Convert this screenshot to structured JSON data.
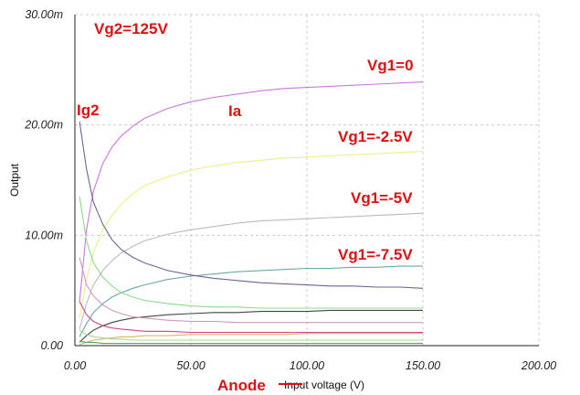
{
  "chart_data": {
    "type": "line",
    "title": "",
    "xlabel": "Input voltage (V)",
    "xlabel_strike": "Input",
    "xlabel_rest": " voltage (V)",
    "xlabel_overwrite": "Anode",
    "ylabel": "Output",
    "xlim": [
      0,
      200
    ],
    "ylim": [
      0,
      0.03
    ],
    "grid": true,
    "x_ticks": [
      "0.00",
      "50.00",
      "100.00",
      "150.00",
      "200.00"
    ],
    "x_tick_values": [
      0,
      50,
      100,
      150,
      200
    ],
    "y_ticks": [
      "0.00",
      "10.00m",
      "20.00m",
      "30.00m"
    ],
    "y_tick_values": [
      0,
      0.01,
      0.02,
      0.03
    ],
    "annotations": {
      "vg2": "Vg2=125V",
      "ig2": "Ig2",
      "ia": "Ia",
      "vg1_0": "Vg1=0",
      "vg1_m2_5": "Vg1=-2.5V",
      "vg1_m5": "Vg1=-5V",
      "vg1_m7_5": "Vg1=-7.5V"
    },
    "series": [
      {
        "group": "Ia",
        "color": "#cc77dd",
        "x": [
          2,
          5,
          8,
          12,
          16,
          20,
          25,
          30,
          40,
          50,
          60,
          70,
          80,
          90,
          100,
          110,
          120,
          130,
          140,
          150
        ],
        "y": [
          0.004,
          0.0105,
          0.014,
          0.0165,
          0.018,
          0.019,
          0.0199,
          0.0206,
          0.0215,
          0.0221,
          0.0225,
          0.0228,
          0.0231,
          0.0233,
          0.0234,
          0.0235,
          0.0236,
          0.0237,
          0.0238,
          0.0239
        ]
      },
      {
        "group": "Ia",
        "color": "#eeee88",
        "x": [
          2,
          5,
          8,
          12,
          16,
          20,
          25,
          30,
          40,
          50,
          60,
          70,
          80,
          90,
          100,
          110,
          120,
          130,
          140,
          150
        ],
        "y": [
          0.0025,
          0.006,
          0.0085,
          0.0105,
          0.0118,
          0.0128,
          0.0138,
          0.0145,
          0.0153,
          0.0159,
          0.0163,
          0.0166,
          0.0168,
          0.017,
          0.0171,
          0.0172,
          0.0173,
          0.0174,
          0.0175,
          0.0176
        ]
      },
      {
        "group": "Ia",
        "color": "#bbbbbb",
        "x": [
          2,
          5,
          8,
          12,
          16,
          20,
          25,
          30,
          40,
          50,
          60,
          70,
          80,
          90,
          100,
          110,
          120,
          130,
          140,
          150
        ],
        "y": [
          0.0015,
          0.0038,
          0.0055,
          0.0068,
          0.0077,
          0.0084,
          0.009,
          0.0095,
          0.0101,
          0.0105,
          0.0108,
          0.0111,
          0.0113,
          0.0114,
          0.0115,
          0.0116,
          0.0117,
          0.0118,
          0.0119,
          0.012
        ]
      },
      {
        "group": "Ia",
        "color": "#6aa8a8",
        "x": [
          2,
          5,
          8,
          12,
          16,
          20,
          25,
          30,
          40,
          50,
          60,
          70,
          80,
          90,
          100,
          110,
          120,
          130,
          140,
          150
        ],
        "y": [
          0.0008,
          0.002,
          0.003,
          0.0038,
          0.0044,
          0.0048,
          0.0052,
          0.0055,
          0.006,
          0.0063,
          0.0065,
          0.0067,
          0.0068,
          0.0069,
          0.007,
          0.007,
          0.0071,
          0.0071,
          0.0072,
          0.0072
        ]
      },
      {
        "group": "Ia",
        "color": "#444444",
        "x": [
          2,
          5,
          8,
          12,
          16,
          20,
          25,
          30,
          40,
          50,
          60,
          70,
          80,
          90,
          100,
          110,
          120,
          130,
          140,
          150
        ],
        "y": [
          0.0003,
          0.0009,
          0.0014,
          0.0018,
          0.0021,
          0.0023,
          0.0025,
          0.0026,
          0.0028,
          0.0029,
          0.003,
          0.003,
          0.0031,
          0.0031,
          0.0031,
          0.0032,
          0.0032,
          0.0032,
          0.0032,
          0.0032
        ]
      },
      {
        "group": "Ia",
        "color": "#d8b860",
        "x": [
          2,
          5,
          8,
          12,
          16,
          20,
          25,
          30,
          40,
          50,
          60,
          70,
          80,
          90,
          100,
          110,
          120,
          130,
          140,
          150
        ],
        "y": [
          0.0001,
          0.0003,
          0.0005,
          0.0006,
          0.0007,
          0.0008,
          0.0008,
          0.0009,
          0.0009,
          0.001,
          0.001,
          0.001,
          0.001,
          0.001,
          0.0011,
          0.0011,
          0.0011,
          0.0011,
          0.0011,
          0.0011
        ]
      },
      {
        "group": "Ig2",
        "color": "#666699",
        "x": [
          2,
          5,
          8,
          12,
          16,
          20,
          25,
          30,
          40,
          50,
          60,
          70,
          80,
          90,
          100,
          110,
          120,
          130,
          140,
          150
        ],
        "y": [
          0.0203,
          0.016,
          0.013,
          0.011,
          0.0096,
          0.0087,
          0.008,
          0.0075,
          0.0068,
          0.0064,
          0.0061,
          0.0059,
          0.0057,
          0.0056,
          0.0055,
          0.0054,
          0.0054,
          0.0053,
          0.0053,
          0.0052
        ]
      },
      {
        "group": "Ig2",
        "color": "#88dd88",
        "x": [
          2,
          5,
          8,
          12,
          16,
          20,
          25,
          30,
          40,
          50,
          60,
          70,
          80,
          90,
          100,
          110,
          120,
          130,
          140,
          150
        ],
        "y": [
          0.0135,
          0.0095,
          0.0075,
          0.0062,
          0.0054,
          0.0048,
          0.0044,
          0.0041,
          0.0038,
          0.0036,
          0.0035,
          0.0035,
          0.0034,
          0.0034,
          0.0034,
          0.0034,
          0.0034,
          0.0034,
          0.0034,
          0.0034
        ]
      },
      {
        "group": "Ig2",
        "color": "#cc99bb",
        "x": [
          2,
          5,
          8,
          12,
          16,
          20,
          25,
          30,
          40,
          50,
          60,
          70,
          80,
          90,
          100,
          110,
          120,
          130,
          140,
          150
        ],
        "y": [
          0.008,
          0.0055,
          0.0045,
          0.0037,
          0.0032,
          0.0029,
          0.0026,
          0.0025,
          0.0023,
          0.0022,
          0.0022,
          0.0021,
          0.0021,
          0.0021,
          0.0021,
          0.0021,
          0.0021,
          0.0021,
          0.0021,
          0.0021
        ]
      },
      {
        "group": "Ig2",
        "color": "#cc4488",
        "x": [
          2,
          5,
          8,
          12,
          16,
          20,
          25,
          30,
          40,
          50,
          60,
          70,
          80,
          90,
          100,
          110,
          120,
          130,
          140,
          150
        ],
        "y": [
          0.004,
          0.0028,
          0.0022,
          0.0018,
          0.0016,
          0.0015,
          0.0014,
          0.0013,
          0.0013,
          0.0012,
          0.0012,
          0.0012,
          0.0012,
          0.0012,
          0.0012,
          0.0012,
          0.0012,
          0.0012,
          0.0012,
          0.0012
        ]
      },
      {
        "group": "Ig2",
        "color": "#aad890",
        "x": [
          2,
          5,
          8,
          12,
          16,
          20,
          25,
          30,
          40,
          50,
          60,
          70,
          80,
          90,
          100,
          110,
          120,
          130,
          140,
          150
        ],
        "y": [
          0.0014,
          0.001,
          0.0008,
          0.0007,
          0.0006,
          0.0006,
          0.0005,
          0.0005,
          0.0005,
          0.0005,
          0.0005,
          0.0005,
          0.0005,
          0.0005,
          0.0005,
          0.0005,
          0.0005,
          0.0005,
          0.0005,
          0.0005
        ]
      },
      {
        "group": "Ig2",
        "color": "#55aa55",
        "x": [
          2,
          5,
          8,
          12,
          16,
          20,
          25,
          30,
          40,
          50,
          60,
          70,
          80,
          90,
          100,
          110,
          120,
          130,
          140,
          150
        ],
        "y": [
          0.0004,
          0.0003,
          0.0003,
          0.0002,
          0.0002,
          0.0002,
          0.0002,
          0.0002,
          0.0002,
          0.0002,
          0.0002,
          0.0002,
          0.0002,
          0.0002,
          0.0002,
          0.0002,
          0.0002,
          0.0002,
          0.0002,
          0.0002
        ]
      }
    ]
  }
}
